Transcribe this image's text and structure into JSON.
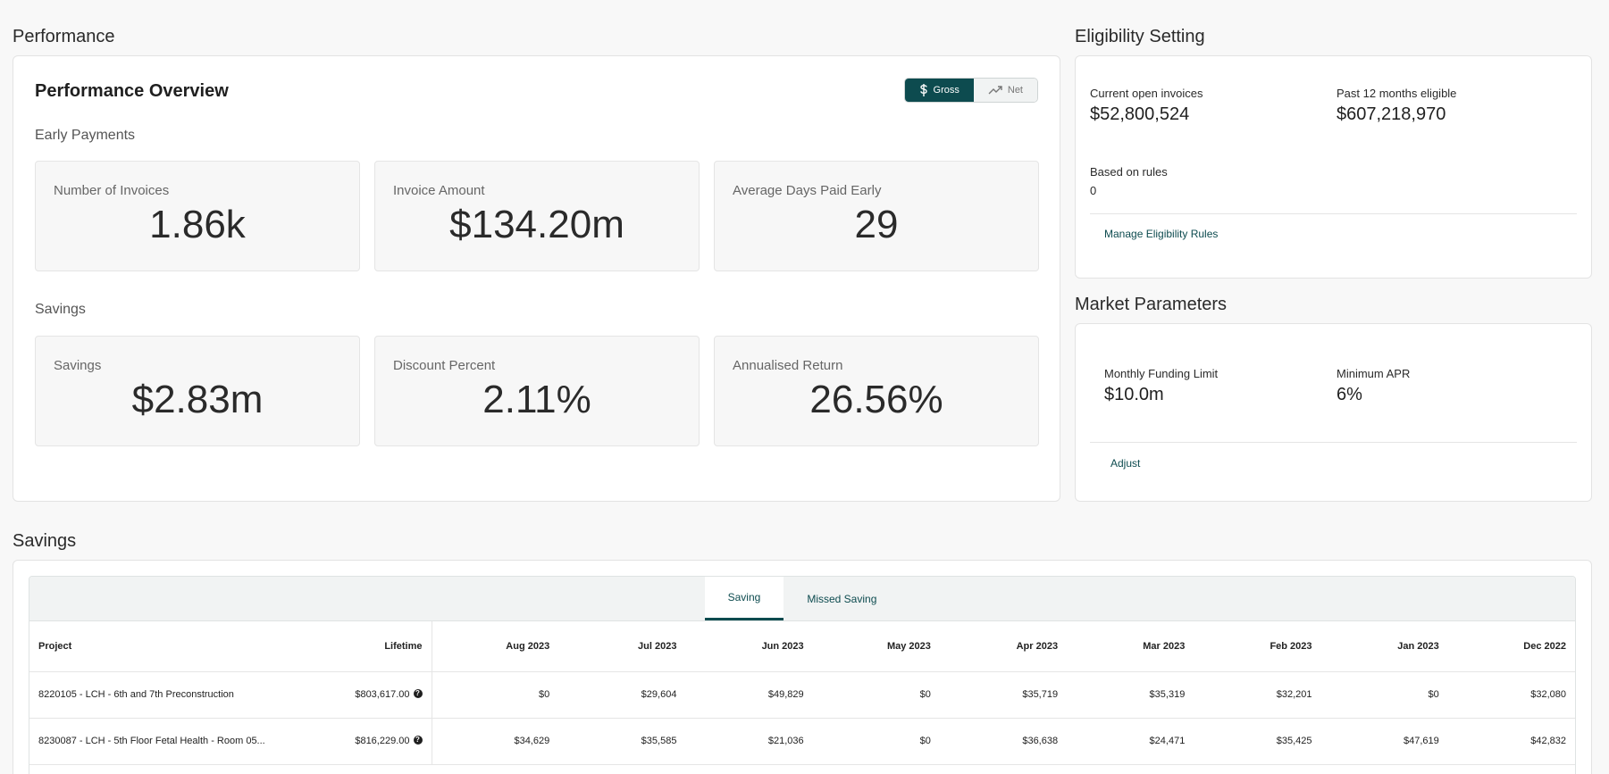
{
  "performance": {
    "section_title": "Performance",
    "heading": "Performance Overview",
    "toggle": {
      "gross_label": "Gross",
      "net_label": "Net",
      "selected": "Gross"
    },
    "early_payments_label": "Early Payments",
    "early_payments": [
      {
        "label": "Number of Invoices",
        "value": "1.86k"
      },
      {
        "label": "Invoice Amount",
        "value": "$134.20m"
      },
      {
        "label": "Average Days Paid Early",
        "value": "29"
      }
    ],
    "savings_label": "Savings",
    "savings": [
      {
        "label": "Savings",
        "value": "$2.83m"
      },
      {
        "label": "Discount Percent",
        "value": "2.11%"
      },
      {
        "label": "Annualised Return",
        "value": "26.56%"
      }
    ]
  },
  "eligibility": {
    "section_title": "Eligibility Setting",
    "open_invoices_label": "Current open invoices",
    "open_invoices_value": "$52,800,524",
    "past_12_label": "Past 12 months eligible",
    "past_12_value": "$607,218,970",
    "rules_label": "Based on rules",
    "rules_value": "0",
    "manage_link": "Manage Eligibility Rules"
  },
  "market": {
    "section_title": "Market Parameters",
    "funding_label": "Monthly Funding Limit",
    "funding_value": "$10.0m",
    "apr_label": "Minimum APR",
    "apr_value": "6%",
    "adjust_link": "Adjust"
  },
  "savings_table": {
    "section_title": "Savings",
    "tabs": [
      "Saving",
      "Missed Saving"
    ],
    "active_tab": "Saving",
    "columns": [
      "Project",
      "Lifetime",
      "Aug 2023",
      "Jul 2023",
      "Jun 2023",
      "May 2023",
      "Apr 2023",
      "Mar 2023",
      "Feb 2023",
      "Jan 2023",
      "Dec 2022"
    ],
    "rows": [
      {
        "project": "8220105 - LCH - 6th and 7th Preconstruction",
        "lifetime": "$803,617.00",
        "months": [
          "$0",
          "$29,604",
          "$49,829",
          "$0",
          "$35,719",
          "$35,319",
          "$32,201",
          "$0",
          "$32,080"
        ]
      },
      {
        "project": "8230087 - LCH - 5th Floor Fetal Health - Room 05...",
        "lifetime": "$816,229.00",
        "months": [
          "$34,629",
          "$35,585",
          "$21,036",
          "$0",
          "$36,638",
          "$24,471",
          "$35,425",
          "$47,619",
          "$42,832"
        ]
      }
    ]
  },
  "colors": {
    "accent": "#0d4b4f",
    "background": "#f8f8f8",
    "card": "#ffffff",
    "metric_bg": "#f7f7f7"
  }
}
